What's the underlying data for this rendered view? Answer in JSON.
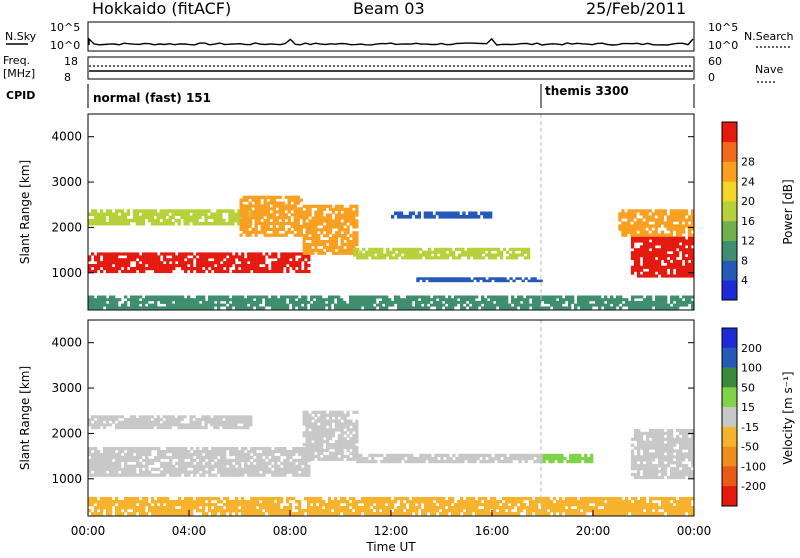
{
  "header": {
    "station": "Hokkaido (fitACF)",
    "beam": "Beam 03",
    "date": "25/Feb/2011"
  },
  "status_panels": {
    "nsky_label": "N.Sky",
    "nsky_ticks": [
      "10^5",
      "10^0"
    ],
    "nsearch_label": "N.Search",
    "nsearch_ticks": [
      "10^5",
      "10^0"
    ],
    "freq_label_1": "Freq.",
    "freq_label_2": "[MHz]",
    "freq_ticks": [
      "18",
      "8"
    ],
    "nave_label": "Nave",
    "nave_ticks": [
      "60",
      "0"
    ],
    "cpid_label": "CPID",
    "cpid_modes": [
      {
        "name": "normal (fast) 151",
        "start_hour": 0.0
      },
      {
        "name": "themis 3300",
        "start_hour": 18.0
      }
    ]
  },
  "chart_data": [
    {
      "type": "heatmap",
      "panel": "power",
      "ylabel": "Slant Range [km]",
      "xlabel": "",
      "ylim": [
        180,
        4500
      ],
      "xlim": [
        0,
        24
      ],
      "yticks": [
        1000,
        2000,
        3000,
        4000
      ],
      "colorbar": {
        "label": "Power [dB]",
        "ticks": [
          "4",
          "8",
          "12",
          "16",
          "20",
          "24",
          "28"
        ],
        "colors": [
          "#1c2ad8",
          "#2559b8",
          "#3f8e6f",
          "#72b04e",
          "#b6d13a",
          "#f1d527",
          "#f9a021",
          "#f06a1a",
          "#e41a10"
        ]
      },
      "regions": [
        {
          "x": [
            0.0,
            8.8
          ],
          "y": [
            1000,
            1450
          ],
          "level": 8
        },
        {
          "x": [
            0.0,
            6.5
          ],
          "y": [
            2050,
            2400
          ],
          "level": 4
        },
        {
          "x": [
            6.0,
            8.5
          ],
          "y": [
            1800,
            2700
          ],
          "level": 6
        },
        {
          "x": [
            8.5,
            10.7
          ],
          "y": [
            1400,
            2500
          ],
          "level": 6
        },
        {
          "x": [
            10.5,
            17.5
          ],
          "y": [
            1300,
            1550
          ],
          "level": 4
        },
        {
          "x": [
            12.0,
            16.0
          ],
          "y": [
            2200,
            2350
          ],
          "level": 1
        },
        {
          "x": [
            13.0,
            18.0
          ],
          "y": [
            800,
            900
          ],
          "level": 1
        },
        {
          "x": [
            21.5,
            24.0
          ],
          "y": [
            900,
            1800
          ],
          "level": 8
        },
        {
          "x": [
            21.0,
            24.0
          ],
          "y": [
            1800,
            2400
          ],
          "level": 6
        },
        {
          "x": [
            0.0,
            24.0
          ],
          "y": [
            200,
            500
          ],
          "level": 2
        }
      ]
    },
    {
      "type": "heatmap",
      "panel": "velocity",
      "ylabel": "Slant Range [km]",
      "xlabel": "Time UT",
      "ylim": [
        180,
        4500
      ],
      "xlim": [
        0,
        24
      ],
      "yticks": [
        1000,
        2000,
        3000,
        4000
      ],
      "xticks": [
        "00:00",
        "04:00",
        "08:00",
        "12:00",
        "16:00",
        "20:00",
        "00:00"
      ],
      "colorbar": {
        "label": "Velocity [m s⁻¹]",
        "ticks": [
          "200",
          "100",
          "50",
          "15",
          "-15",
          "-50",
          "-100",
          "-200"
        ],
        "colors": [
          "#1c2ad8",
          "#2559b8",
          "#3a8a3a",
          "#7fd34a",
          "#c8c8c8",
          "#f7b32d",
          "#f08d1f",
          "#ea5a16",
          "#e41a10"
        ]
      },
      "regions": [
        {
          "x": [
            0.0,
            8.8
          ],
          "y": [
            1050,
            1700
          ],
          "level": "gray"
        },
        {
          "x": [
            0.0,
            6.5
          ],
          "y": [
            2100,
            2400
          ],
          "level": "gray"
        },
        {
          "x": [
            8.5,
            10.7
          ],
          "y": [
            1400,
            2500
          ],
          "level": "gray"
        },
        {
          "x": [
            10.5,
            18.0
          ],
          "y": [
            1350,
            1550
          ],
          "level": "gray"
        },
        {
          "x": [
            18.0,
            20.0
          ],
          "y": [
            1350,
            1550
          ],
          "level": "green"
        },
        {
          "x": [
            21.5,
            24.0
          ],
          "y": [
            1000,
            2100
          ],
          "level": "gray"
        },
        {
          "x": [
            0.0,
            24.0
          ],
          "y": [
            200,
            600
          ],
          "level": "orange"
        }
      ]
    }
  ]
}
